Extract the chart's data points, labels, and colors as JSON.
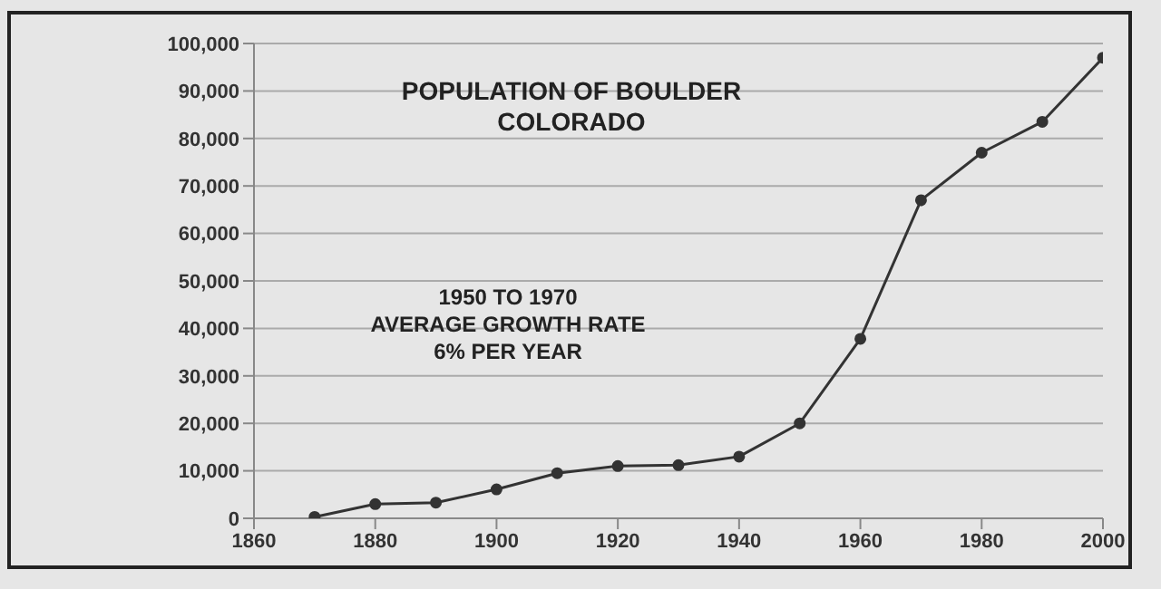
{
  "chart_data": {
    "type": "line",
    "title": "POPULATION OF BOULDER\nCOLORADO",
    "annotations": [
      "1950 TO 1970\nAVERAGE GROWTH RATE\n6% PER YEAR"
    ],
    "x": [
      1870,
      1880,
      1890,
      1900,
      1910,
      1920,
      1930,
      1940,
      1950,
      1960,
      1970,
      1980,
      1990,
      2000
    ],
    "series": [
      {
        "color": "#333333",
        "values": [
          300,
          3000,
          3300,
          6100,
          9500,
          11000,
          11200,
          13000,
          20000,
          37800,
          67000,
          77000,
          83500,
          97000
        ]
      }
    ],
    "xlim": [
      1860,
      2000
    ],
    "xticks": [
      1860,
      1880,
      1900,
      1920,
      1940,
      1960,
      1980,
      2000
    ],
    "ylim": [
      0,
      100000
    ],
    "yticks": [
      0,
      {
        "value": 10000,
        "label": "10,000"
      },
      {
        "value": 20000,
        "label": "20,000"
      },
      {
        "value": 30000,
        "label": "30,000"
      },
      {
        "value": 40000,
        "label": "40,000"
      },
      {
        "value": 50000,
        "label": "50,000"
      },
      {
        "value": 60000,
        "label": "60,000"
      },
      {
        "value": 70000,
        "label": "70,000"
      },
      {
        "value": 80000,
        "label": "80,000"
      },
      {
        "value": 90000,
        "label": "90,000"
      },
      {
        "value": 100000,
        "label": "100,000"
      }
    ],
    "grid": "y",
    "marker": "circle",
    "legend": false
  }
}
